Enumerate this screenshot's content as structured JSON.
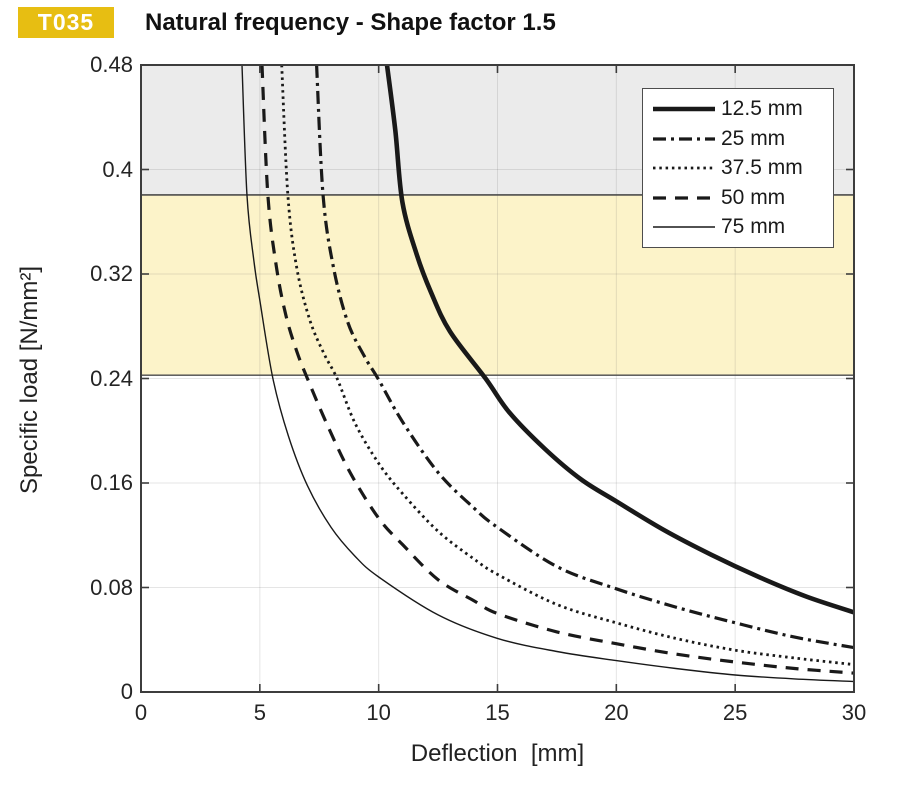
{
  "badge": {
    "label": "T035",
    "color": "#e7be12"
  },
  "title": "Natural frequency - Shape factor 1.5",
  "chart_data": {
    "type": "line",
    "title": "Natural frequency - Shape factor 1.5",
    "xlabel": "Deflection  [mm]",
    "ylabel": "Specific load [N/mm²]",
    "xlim": [
      0,
      30
    ],
    "ylim": [
      0,
      0.48
    ],
    "xticks": [
      0,
      5,
      10,
      15,
      20,
      25,
      30
    ],
    "yticks": [
      0,
      0.08,
      0.16,
      0.24,
      0.32,
      0.4,
      0.48
    ],
    "grid": true,
    "legend_position": "top-right",
    "bands": [
      {
        "name": "upper-gray-zone",
        "from": 0.3805,
        "to": 0.48,
        "color": "#ebebeb",
        "border_color": "#4a4a4a"
      },
      {
        "name": "recommended-load-band",
        "from": 0.2425,
        "to": 0.3805,
        "color": "#fcf3c9",
        "border_color": "#4a4a4a"
      }
    ],
    "series": [
      {
        "name": "12.5 mm",
        "style": "solid-thick",
        "points": [
          [
            10.35,
            0.48
          ],
          [
            10.7,
            0.43
          ],
          [
            11.0,
            0.375
          ],
          [
            11.6,
            0.335
          ],
          [
            12.2,
            0.306
          ],
          [
            13,
            0.276
          ],
          [
            14.5,
            0.24
          ],
          [
            15.5,
            0.214
          ],
          [
            17,
            0.186
          ],
          [
            18.5,
            0.163
          ],
          [
            20,
            0.146
          ],
          [
            22,
            0.124
          ],
          [
            24,
            0.105
          ],
          [
            26,
            0.088
          ],
          [
            28,
            0.073
          ],
          [
            30,
            0.061
          ]
        ]
      },
      {
        "name": "25 mm",
        "style": "dash-dot",
        "points": [
          [
            7.39,
            0.48
          ],
          [
            7.66,
            0.38
          ],
          [
            8.1,
            0.325
          ],
          [
            8.7,
            0.283
          ],
          [
            9.4,
            0.257
          ],
          [
            10,
            0.239
          ],
          [
            11,
            0.207
          ],
          [
            12.5,
            0.168
          ],
          [
            14,
            0.141
          ],
          [
            15,
            0.126
          ],
          [
            17.5,
            0.096
          ],
          [
            20,
            0.079
          ],
          [
            22.5,
            0.065
          ],
          [
            25,
            0.053
          ],
          [
            27.5,
            0.042
          ],
          [
            30,
            0.034
          ]
        ]
      },
      {
        "name": "37.5 mm",
        "style": "dotted",
        "points": [
          [
            5.92,
            0.48
          ],
          [
            6.18,
            0.38
          ],
          [
            6.55,
            0.325
          ],
          [
            7.1,
            0.285
          ],
          [
            7.7,
            0.259
          ],
          [
            8.25,
            0.24
          ],
          [
            9,
            0.206
          ],
          [
            10,
            0.175
          ],
          [
            11,
            0.152
          ],
          [
            12.5,
            0.123
          ],
          [
            14,
            0.102
          ],
          [
            15,
            0.09
          ],
          [
            17.5,
            0.067
          ],
          [
            20,
            0.053
          ],
          [
            22.5,
            0.041
          ],
          [
            25,
            0.032
          ],
          [
            27.5,
            0.026
          ],
          [
            30,
            0.021
          ]
        ]
      },
      {
        "name": "50 mm",
        "style": "dashed",
        "points": [
          [
            5.09,
            0.48
          ],
          [
            5.34,
            0.38
          ],
          [
            5.7,
            0.325
          ],
          [
            6.1,
            0.288
          ],
          [
            6.55,
            0.261
          ],
          [
            7.0,
            0.24
          ],
          [
            7.8,
            0.206
          ],
          [
            8.8,
            0.168
          ],
          [
            10,
            0.133
          ],
          [
            11,
            0.113
          ],
          [
            12.5,
            0.086
          ],
          [
            14,
            0.07
          ],
          [
            15,
            0.06
          ],
          [
            17.5,
            0.046
          ],
          [
            20,
            0.037
          ],
          [
            22.5,
            0.029
          ],
          [
            25,
            0.023
          ],
          [
            27.5,
            0.018
          ],
          [
            30,
            0.0145
          ]
        ]
      },
      {
        "name": "75 mm",
        "style": "solid-thin",
        "points": [
          [
            4.25,
            0.48
          ],
          [
            4.46,
            0.38
          ],
          [
            4.75,
            0.33
          ],
          [
            5.0,
            0.3
          ],
          [
            5.55,
            0.24
          ],
          [
            6.2,
            0.196
          ],
          [
            7,
            0.158
          ],
          [
            8,
            0.126
          ],
          [
            9,
            0.104
          ],
          [
            10,
            0.088
          ],
          [
            12.5,
            0.059
          ],
          [
            15,
            0.041
          ],
          [
            17.5,
            0.031
          ],
          [
            20,
            0.024
          ],
          [
            22.5,
            0.018
          ],
          [
            25,
            0.013
          ],
          [
            27.5,
            0.01
          ],
          [
            30,
            0.008
          ]
        ]
      }
    ],
    "line_color": "#191919",
    "grid_color": "rgba(80,80,80,0.15)",
    "axis_color": "#3d3d3d"
  }
}
